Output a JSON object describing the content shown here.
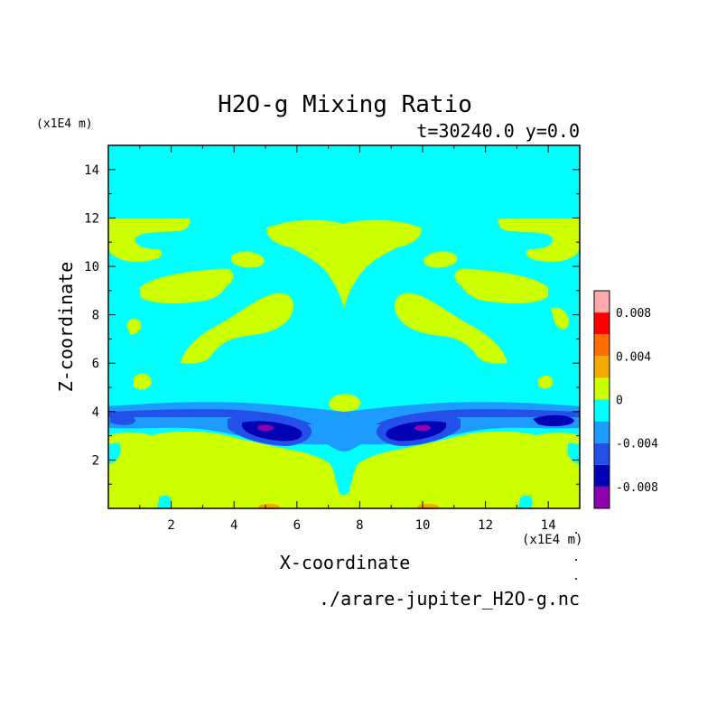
{
  "chart_data": {
    "type": "heatmap",
    "title": "H2O-g Mixing Ratio",
    "subtitle": "t=30240.0 y=0.0",
    "xlabel": "X-coordinate",
    "ylabel": "Z-coordinate",
    "x_unit": "(x1E4 m)",
    "y_unit": "(x1E4 m)",
    "xlim": [
      0,
      15
    ],
    "ylim": [
      0,
      15
    ],
    "x_ticks": [
      2,
      4,
      6,
      8,
      10,
      12,
      14
    ],
    "y_ticks": [
      2,
      4,
      6,
      8,
      10,
      12,
      14
    ],
    "x_tick_labels": [
      "2",
      "4",
      "6",
      "8",
      "10",
      "12",
      "14"
    ],
    "y_tick_labels": [
      "2",
      "4",
      "6",
      "8",
      "10",
      "12",
      "14"
    ],
    "colorbar": {
      "levels": [
        -0.01,
        -0.008,
        -0.006,
        -0.004,
        -0.002,
        0,
        0.002,
        0.004,
        0.006,
        0.008,
        0.01
      ],
      "colors": [
        "#8d00b0",
        "#0000b4",
        "#2250e8",
        "#1e9bff",
        "#00ffff",
        "#ccff00",
        "#f5aa00",
        "#ff6e00",
        "#ff0000",
        "#ffaaaa"
      ],
      "tick_values": [
        0.008,
        0.004,
        0,
        -0.004,
        -0.008
      ],
      "tick_labels": [
        "0.008",
        "0.004",
        "0",
        "-0.004",
        "-0.008"
      ]
    },
    "background_color": "#00ffff",
    "regions": {
      "positive_color": "#ccff00",
      "band_colors": [
        "#1e9bff",
        "#2250e8",
        "#0000b4",
        "#8d00b0"
      ],
      "small_positive_color": "#f5aa00"
    },
    "grid": false,
    "legend_position": "right"
  },
  "footer": {
    "filename": "./arare-jupiter_H2O-g.nc"
  }
}
